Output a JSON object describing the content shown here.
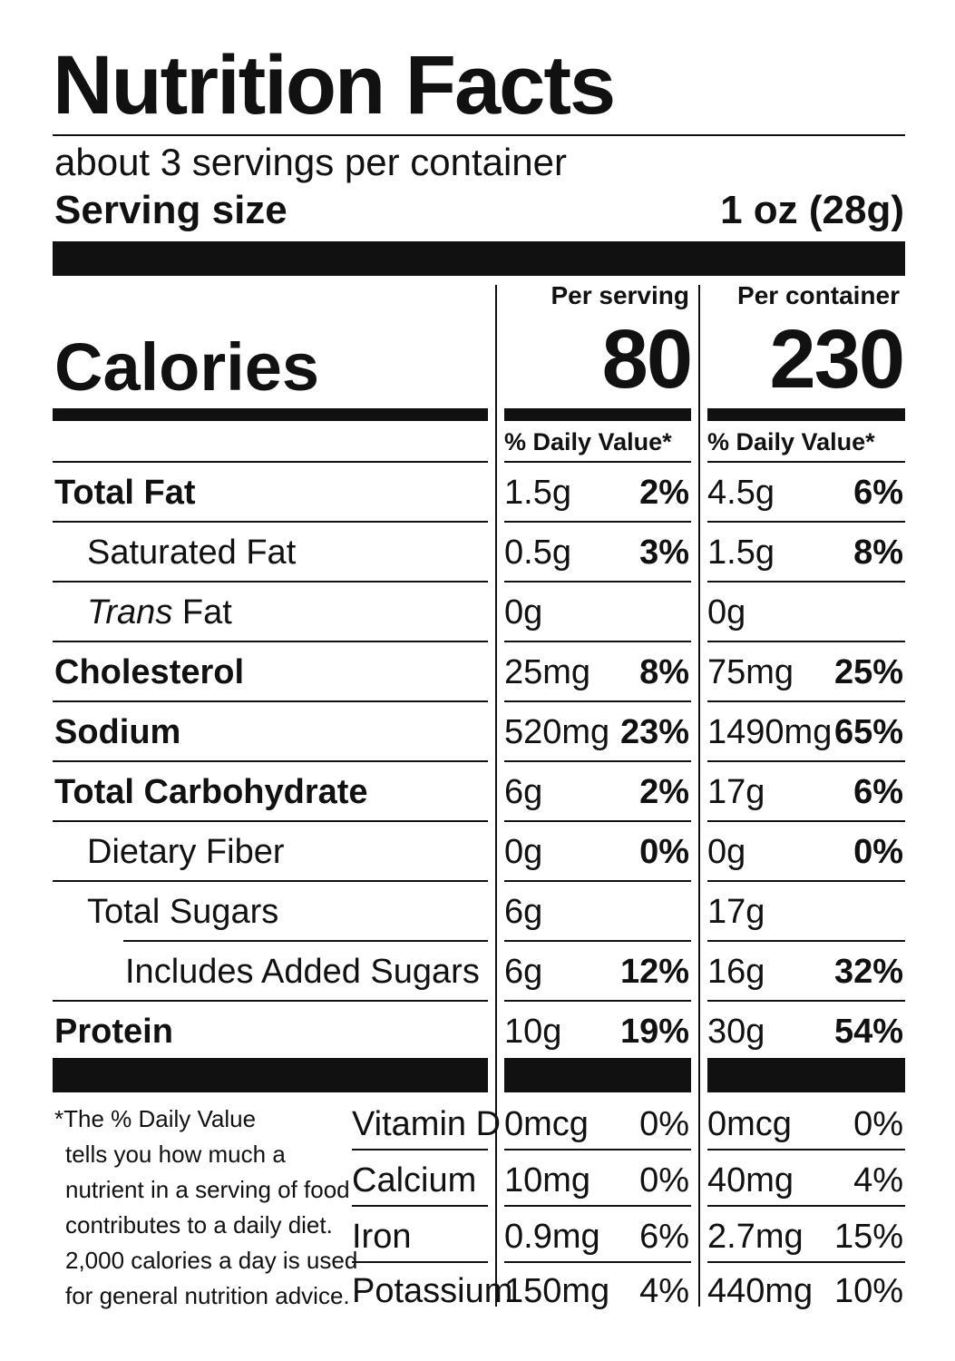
{
  "title": "Nutrition Facts",
  "servings_per_container": "about 3 servings per container",
  "serving_size": {
    "label": "Serving size",
    "value": "1 oz (28g)"
  },
  "columns": {
    "per_serving": "Per serving",
    "per_container": "Per container"
  },
  "calories": {
    "label": "Calories",
    "per_serving": "80",
    "per_container": "230"
  },
  "daily_value_header": "% Daily Value*",
  "nutrients": [
    {
      "label": "Total Fat",
      "serv_amt": "1.5g",
      "serv_pct": "2%",
      "cont_amt": "4.5g",
      "cont_pct": "6%"
    },
    {
      "label": "Saturated Fat",
      "serv_amt": "0.5g",
      "serv_pct": "3%",
      "cont_amt": "1.5g",
      "cont_pct": "8%"
    },
    {
      "label_italic": "Trans",
      "label": " Fat",
      "serv_amt": "0g",
      "serv_pct": "",
      "cont_amt": "0g",
      "cont_pct": ""
    },
    {
      "label": "Cholesterol",
      "serv_amt": "25mg",
      "serv_pct": "8%",
      "cont_amt": "75mg",
      "cont_pct": "25%"
    },
    {
      "label": "Sodium",
      "serv_amt": "520mg",
      "serv_pct": "23%",
      "cont_amt": "1490mg",
      "cont_pct": "65%"
    },
    {
      "label": "Total Carbohydrate",
      "serv_amt": "6g",
      "serv_pct": "2%",
      "cont_amt": "17g",
      "cont_pct": "6%"
    },
    {
      "label": "Dietary Fiber",
      "serv_amt": "0g",
      "serv_pct": "0%",
      "cont_amt": "0g",
      "cont_pct": "0%"
    },
    {
      "label": "Total Sugars",
      "serv_amt": "6g",
      "serv_pct": "",
      "cont_amt": "17g",
      "cont_pct": ""
    },
    {
      "label": "Includes Added Sugars",
      "serv_amt": "6g",
      "serv_pct": "12%",
      "cont_amt": "16g",
      "cont_pct": "32%"
    },
    {
      "label": "Protein",
      "serv_amt": "10g",
      "serv_pct": "19%",
      "cont_amt": "30g",
      "cont_pct": "54%"
    }
  ],
  "vitamins": [
    {
      "label": "Vitamin D",
      "serv_amt": "0mcg",
      "serv_pct": "0%",
      "cont_amt": "0mcg",
      "cont_pct": "0%"
    },
    {
      "label": "Calcium",
      "serv_amt": "10mg",
      "serv_pct": "0%",
      "cont_amt": "40mg",
      "cont_pct": "4%"
    },
    {
      "label": "Iron",
      "serv_amt": "0.9mg",
      "serv_pct": "6%",
      "cont_amt": "2.7mg",
      "cont_pct": "15%"
    },
    {
      "label": "Potassium",
      "serv_amt": "150mg",
      "serv_pct": "4%",
      "cont_amt": "440mg",
      "cont_pct": "10%"
    }
  ],
  "footnote": [
    "*The % Daily Value",
    "tells you how much a",
    "nutrient in a serving of food",
    "contributes to a daily diet.",
    "2,000 calories a day is used",
    "for general nutrition advice."
  ]
}
